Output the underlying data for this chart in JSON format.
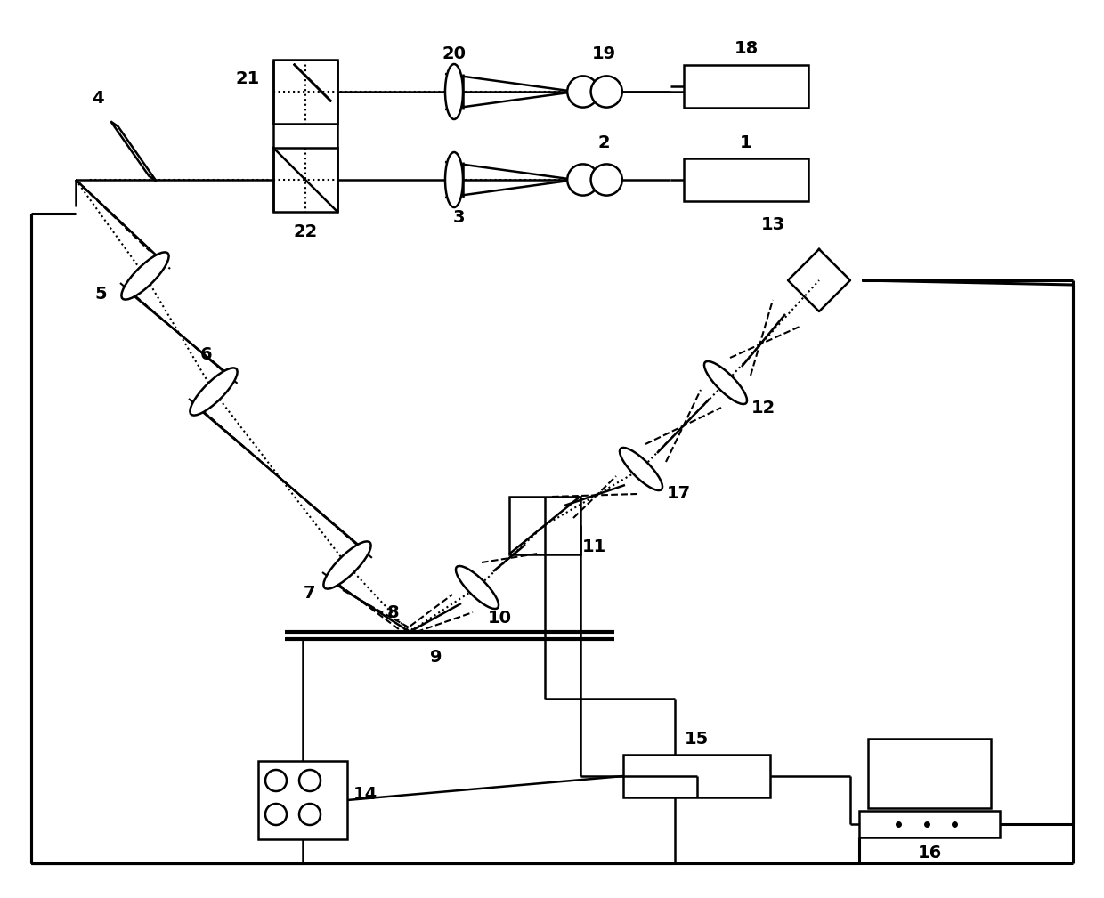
{
  "figsize": [
    12.4,
    10.09
  ],
  "dpi": 100,
  "lw": 1.8,
  "lw2": 2.2,
  "fs": 14,
  "fw": "bold"
}
